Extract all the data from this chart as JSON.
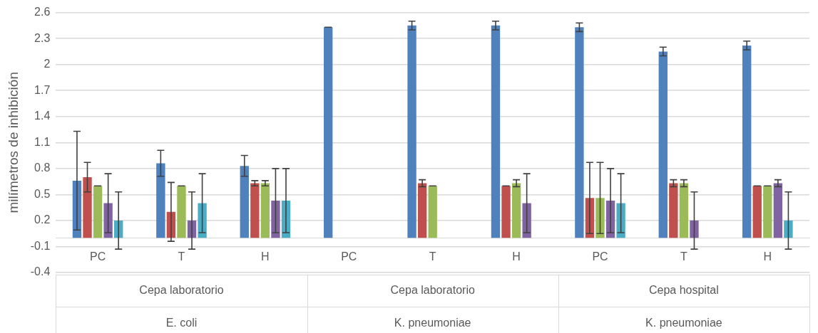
{
  "chart_data": {
    "type": "bar",
    "ylabel": "milímetros de inhibición",
    "categories": [
      "PC",
      "T",
      "H",
      "PC",
      "T",
      "H",
      "PC",
      "T",
      "H"
    ],
    "annotations": [
      "Cepa laboratorio",
      "E. coli",
      "Cepa laboratorio",
      "K. pneumoniae",
      "Cepa hospital",
      "K. pneumoniae"
    ],
    "ylim": [
      -0.4,
      2.6
    ],
    "yticks": [
      -0.4,
      -0.1,
      0.2,
      0.5,
      0.8,
      1.1,
      1.4,
      1.7,
      2,
      2.3,
      2.6
    ],
    "grid": "y",
    "legend": false,
    "series": [
      {
        "color": "#4f81bd",
        "values": [
          0.66,
          0.86,
          0.83,
          2.43,
          2.45,
          2.45,
          2.43,
          2.15,
          2.22
        ],
        "errors": [
          0.57,
          0.15,
          0.12,
          0,
          0.05,
          0.05,
          0.05,
          0.05,
          0.05
        ]
      },
      {
        "color": "#c0504d",
        "values": [
          0.7,
          0.3,
          0.63,
          0,
          0.63,
          0.6,
          0.46,
          0.63,
          0.6
        ],
        "errors": [
          0.17,
          0.34,
          0.03,
          null,
          0.04,
          0,
          0.41,
          0.04,
          0
        ]
      },
      {
        "color": "#9bbb59",
        "values": [
          0.6,
          0.6,
          0.63,
          0,
          0.6,
          0.63,
          0.46,
          0.63,
          0.6
        ],
        "errors": [
          0,
          0,
          0.03,
          null,
          0,
          0.04,
          0.41,
          0.04,
          0
        ]
      },
      {
        "color": "#8064a2",
        "values": [
          0.4,
          0.2,
          0.43,
          0,
          0,
          0.4,
          0.43,
          0.2,
          0.63
        ],
        "errors": [
          0.34,
          0.33,
          0.37,
          null,
          null,
          0.34,
          0.37,
          0.33,
          0.04
        ]
      },
      {
        "color": "#4bacc6",
        "values": [
          0.2,
          0.4,
          0.43,
          0,
          0,
          0,
          0.4,
          0,
          0.2
        ],
        "errors": [
          0.33,
          0.34,
          0.37,
          null,
          null,
          null,
          0.34,
          null,
          0.33
        ]
      }
    ]
  }
}
